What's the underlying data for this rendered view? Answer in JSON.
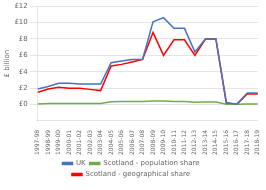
{
  "chart_data": {
    "type": "line",
    "ylabel": "£ billion",
    "categories": [
      "1997-98",
      "1998-99",
      "1999-00",
      "2000-01",
      "2001-02",
      "2002-03",
      "2003-04",
      "2004-05",
      "2005-06",
      "2006-07",
      "2007-08",
      "2008-09",
      "2009-10",
      "2010-11",
      "2011-12",
      "2012-13",
      "2013-14",
      "2014-15",
      "2015-16",
      "2016-17",
      "2017-18",
      "2018-19"
    ],
    "series": [
      {
        "name": "UK",
        "color": "#4472C4",
        "values": [
          1.9,
          2.2,
          2.6,
          2.6,
          2.5,
          2.5,
          2.5,
          5.1,
          5.3,
          5.5,
          5.5,
          10.1,
          10.6,
          9.3,
          9.3,
          6.4,
          8.0,
          8.0,
          0.25,
          0.05,
          1.4,
          1.4
        ]
      },
      {
        "name": "Scotland - population share",
        "color": "#70AD47",
        "values": [
          0.08,
          0.12,
          0.12,
          0.12,
          0.12,
          0.12,
          0.12,
          0.35,
          0.37,
          0.38,
          0.38,
          0.42,
          0.42,
          0.38,
          0.38,
          0.28,
          0.32,
          0.31,
          0.04,
          0.03,
          0.07,
          0.07
        ]
      },
      {
        "name": "Scotland - geographical share",
        "color": "#FF0000",
        "values": [
          1.5,
          1.9,
          2.1,
          2.0,
          2.0,
          1.85,
          1.7,
          4.7,
          4.9,
          5.2,
          5.5,
          8.8,
          6.0,
          7.9,
          7.9,
          6.0,
          8.0,
          8.0,
          0.15,
          0.04,
          1.3,
          1.3
        ]
      }
    ],
    "ylim": [
      -2,
      12
    ],
    "yticks": [
      {
        "value": 0,
        "label": "£0"
      },
      {
        "value": 2,
        "label": "£2"
      },
      {
        "value": 4,
        "label": "£4"
      },
      {
        "value": 6,
        "label": "£6"
      },
      {
        "value": 8,
        "label": "£8"
      },
      {
        "value": 10,
        "label": "£10"
      },
      {
        "value": 12,
        "label": "£12"
      }
    ],
    "grid": "y",
    "legend": "bottom"
  }
}
